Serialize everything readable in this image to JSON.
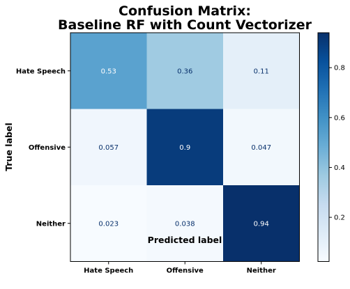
{
  "chart_data": {
    "type": "heatmap",
    "title_line1": "Confusion Matrix:",
    "title_line2": "Baseline RF with Count Vectorizer",
    "xlabel": "Predicted label",
    "ylabel": "True label",
    "x_categories": [
      "Hate Speech",
      "Offensive",
      "Neither"
    ],
    "y_categories": [
      "Hate Speech",
      "Offensive",
      "Neither"
    ],
    "values": [
      [
        0.53,
        0.36,
        0.11
      ],
      [
        0.057,
        0.9,
        0.047
      ],
      [
        0.023,
        0.038,
        0.94
      ]
    ],
    "value_labels": [
      [
        "0.53",
        "0.36",
        "0.11"
      ],
      [
        "0.057",
        "0.9",
        "0.047"
      ],
      [
        "0.023",
        "0.038",
        "0.94"
      ]
    ],
    "colormap": "Blues",
    "colorbar": {
      "range": [
        0.023,
        0.94
      ],
      "ticks": [
        0.2,
        0.4,
        0.6,
        0.8
      ],
      "tick_labels": [
        "0.2",
        "0.4",
        "0.6",
        "0.8"
      ]
    }
  }
}
